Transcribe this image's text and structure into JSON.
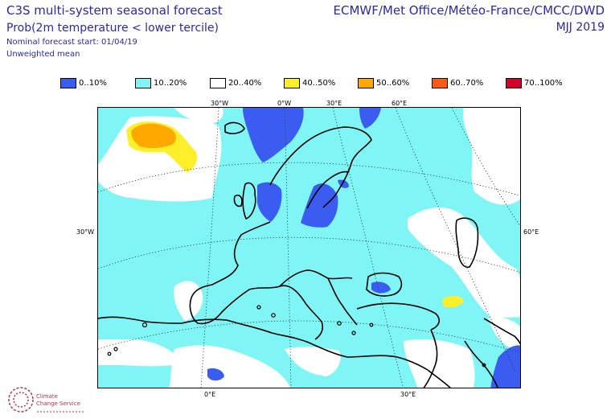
{
  "header": {
    "title_line1": "C3S multi-system seasonal forecast",
    "title_line2": "Prob(2m temperature < lower tercile)",
    "start_label": "Nominal forecast start: 01/04/19",
    "mean_label": "Unweighted mean",
    "centres": "ECMWF/Met Office/Météo-France/CMCC/DWD",
    "season": "MJJ 2019"
  },
  "legend": [
    {
      "label": "0..10%",
      "color": "#3a5cf0"
    },
    {
      "label": "10..20%",
      "color": "#7ff5f5"
    },
    {
      "label": "20..40%",
      "color": "#ffffff"
    },
    {
      "label": "40..50%",
      "color": "#ffee2a"
    },
    {
      "label": "50..60%",
      "color": "#ffa800"
    },
    {
      "label": "60..70%",
      "color": "#ff5a14"
    },
    {
      "label": "70..100%",
      "color": "#d4002a"
    }
  ],
  "map": {
    "coord_labels": {
      "top": [
        "30°W",
        "0°W",
        "30°E",
        "60°E"
      ],
      "left": "30°W",
      "right": "60°E",
      "bottom": [
        "0°E",
        "30°E"
      ]
    }
  },
  "logo": {
    "line1": "Climate",
    "line2": "Change Service"
  }
}
